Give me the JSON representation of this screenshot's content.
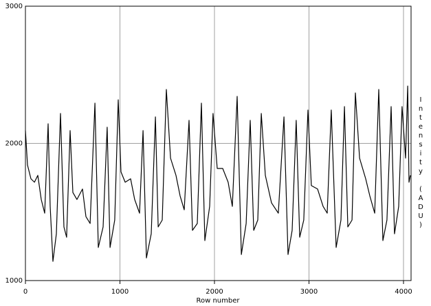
{
  "chart_data": {
    "type": "line",
    "x_label": "Row number",
    "y_label": "Intensity (ADU)",
    "x": [
      0,
      22,
      58,
      95,
      131,
      167,
      204,
      240,
      262,
      291,
      327,
      371,
      407,
      436,
      473,
      502,
      545,
      604,
      640,
      684,
      735,
      771,
      822,
      865,
      895,
      945,
      982,
      1011,
      1055,
      1113,
      1156,
      1207,
      1244,
      1280,
      1331,
      1375,
      1404,
      1447,
      1491,
      1535,
      1593,
      1636,
      1680,
      1731,
      1767,
      1818,
      1862,
      1898,
      1949,
      1985,
      2029,
      2087,
      2145,
      2189,
      2240,
      2284,
      2335,
      2378,
      2415,
      2458,
      2495,
      2538,
      2604,
      2676,
      2735,
      2778,
      2822,
      2865,
      2902,
      2945,
      2989,
      3025,
      3091,
      3149,
      3193,
      3236,
      3287,
      3338,
      3375,
      3411,
      3455,
      3491,
      3535,
      3600,
      3644,
      3695,
      3738,
      3782,
      3825,
      3869,
      3905,
      3949,
      3985,
      4022,
      4044,
      4058,
      4073
    ],
    "values": [
      2093,
      1842,
      1742,
      1717,
      1767,
      1591,
      1491,
      2143,
      1541,
      1140,
      1341,
      2218,
      1391,
      1316,
      2093,
      1642,
      1591,
      1667,
      1466,
      1416,
      2293,
      1241,
      1391,
      2118,
      1241,
      1441,
      2318,
      1792,
      1717,
      1742,
      1591,
      1491,
      2093,
      1165,
      1341,
      2193,
      1391,
      1441,
      2393,
      1892,
      1767,
      1617,
      1516,
      2168,
      1366,
      1416,
      2293,
      1291,
      1541,
      2218,
      1817,
      1817,
      1717,
      1541,
      2343,
      1190,
      1416,
      2168,
      1366,
      1441,
      2218,
      1767,
      1566,
      1491,
      2193,
      1190,
      1366,
      2168,
      1316,
      1441,
      2243,
      1692,
      1667,
      1541,
      1491,
      2243,
      1241,
      1441,
      2268,
      1391,
      1441,
      2368,
      1892,
      1742,
      1617,
      1491,
      2393,
      1291,
      1441,
      2268,
      1341,
      1541,
      2268,
      1892,
      2418,
      1717,
      1767
    ],
    "color": "#000000",
    "xlim": [
      0,
      4080
    ],
    "ylim": [
      1000,
      3000
    ],
    "xticks": [
      0,
      1000,
      2000,
      3000,
      4000
    ],
    "yticks": [
      1000,
      2000,
      3000
    ],
    "grid": true
  }
}
